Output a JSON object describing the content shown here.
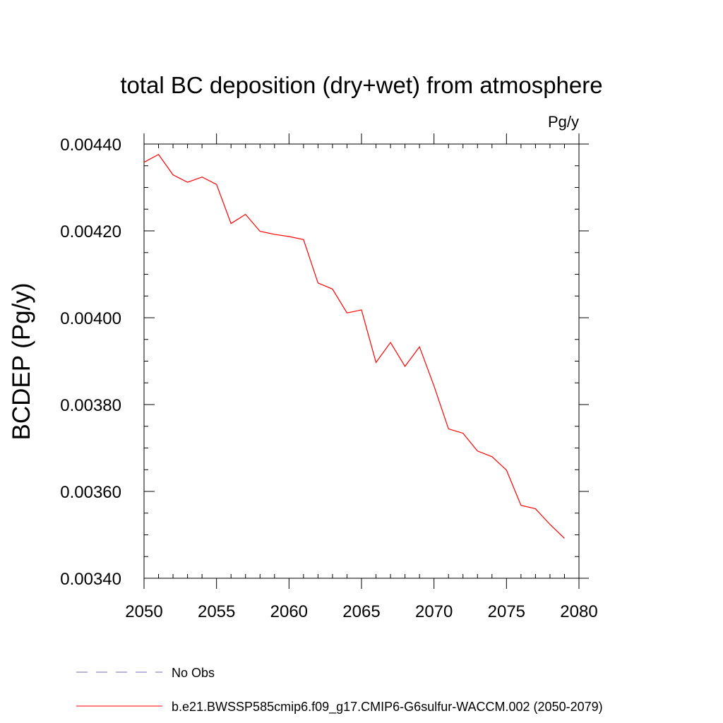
{
  "chart_data": {
    "type": "line",
    "title": "total BC deposition (dry+wet) from atmosphere",
    "units": "Pg/y",
    "xlabel": "",
    "ylabel": "BCDEP  (Pg/y)",
    "xlim": [
      2050,
      2080
    ],
    "ylim": [
      0.0034,
      0.0044
    ],
    "x_ticks": [
      2050,
      2055,
      2060,
      2065,
      2070,
      2075,
      2080
    ],
    "x_tick_labels": [
      "2050",
      "2055",
      "2060",
      "2065",
      "2070",
      "2075",
      "2080"
    ],
    "y_ticks": [
      0.0034,
      0.0036,
      0.0038,
      0.004,
      0.0042,
      0.0044
    ],
    "y_tick_labels": [
      "0.00340",
      "0.00360",
      "0.00380",
      "0.00400",
      "0.00420",
      "0.00440"
    ],
    "grid": false,
    "legend_position": "bottom",
    "series": [
      {
        "name": "b.e21.BWSSP585cmip6.f09_g17.CMIP6-G6sulfur-WACCM.002 (2050-2079)",
        "color": "#ff0000",
        "style": "solid",
        "x": [
          2050,
          2051,
          2052,
          2053,
          2054,
          2055,
          2056,
          2057,
          2058,
          2059,
          2060,
          2061,
          2062,
          2063,
          2064,
          2065,
          2066,
          2067,
          2068,
          2069,
          2070,
          2071,
          2072,
          2073,
          2074,
          2075,
          2076,
          2077,
          2078,
          2079
        ],
        "y": [
          0.004358,
          0.004376,
          0.004329,
          0.004312,
          0.004324,
          0.004307,
          0.004217,
          0.004238,
          0.004199,
          0.004192,
          0.004187,
          0.00418,
          0.00408,
          0.004066,
          0.004011,
          0.004018,
          0.003897,
          0.003943,
          0.003888,
          0.003933,
          0.003843,
          0.003744,
          0.003734,
          0.003693,
          0.00368,
          0.003649,
          0.003568,
          0.00356,
          0.003524,
          0.003492
        ]
      }
    ],
    "legend": [
      {
        "label": "No Obs",
        "color": "#7b68c0",
        "style": "dashed"
      },
      {
        "label": "b.e21.BWSSP585cmip6.f09_g17.CMIP6-G6sulfur-WACCM.002 (2050-2079)",
        "color": "#ff0000",
        "style": "solid"
      }
    ]
  }
}
